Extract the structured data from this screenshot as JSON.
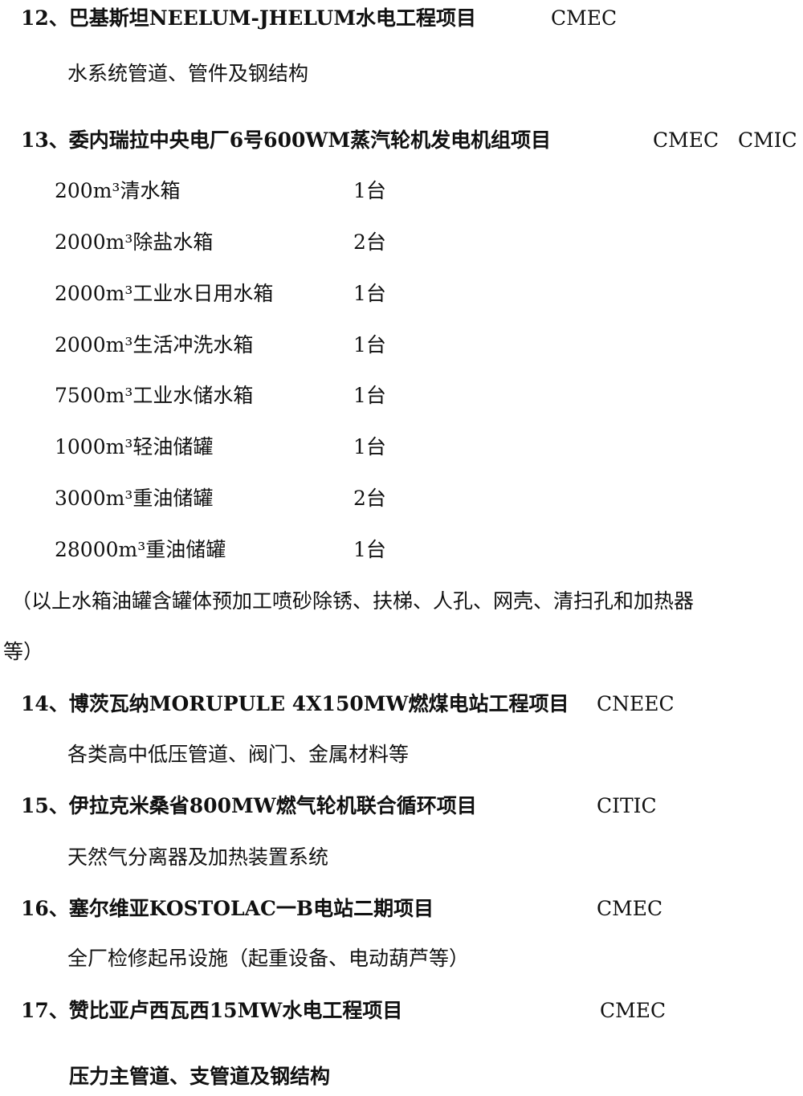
{
  "projects": [
    {
      "title": "12、巴基斯坦NEELUM-JHELUM水电工程项目",
      "contractor": "CMEC",
      "scope": "水系统管道、管件及钢结构"
    },
    {
      "title": "13、委内瑞拉中央电厂6号600WM蒸汽轮机发电机组项目",
      "contractor": "CMEC   CMIC",
      "items": [
        {
          "name": "200m³清水箱",
          "qty": "1台"
        },
        {
          "name": "2000m³除盐水箱",
          "qty": "2台"
        },
        {
          "name": "2000m³工业水日用水箱",
          "qty": "1台"
        },
        {
          "name": "2000m³生活冲洗水箱",
          "qty": "1台"
        },
        {
          "name": "7500m³工业水储水箱",
          "qty": "1台"
        },
        {
          "name": "1000m³轻油储罐",
          "qty": "1台"
        },
        {
          "name": "3000m³重油储罐",
          "qty": "2台"
        },
        {
          "name": "28000m³重油储罐",
          "qty": "1台"
        }
      ],
      "note_line1": "（以上水箱油罐含罐体预加工喷砂除锈、扶梯、人孔、网壳、清扫孔和加热器",
      "note_line2": "等）"
    },
    {
      "title": "14、博茨瓦纳MORUPULE 4X150MW燃煤电站工程项目",
      "contractor": "CNEEC",
      "scope": "各类高中低压管道、阀门、金属材料等"
    },
    {
      "title": "15、伊拉克米桑省800MW燃气轮机联合循环项目",
      "contractor": "CITIC",
      "scope": "天然气分离器及加热装置系统"
    },
    {
      "title": "16、塞尔维亚KOSTOLAC一B电站二期项目",
      "contractor": "CMEC",
      "scope": "全厂检修起吊设施（起重设备、电动葫芦等）"
    },
    {
      "title": "17、赞比亚卢西瓦西15MW水电工程项目",
      "contractor": "CMEC",
      "scope": "压力主管道、支管道及钢结构"
    }
  ]
}
